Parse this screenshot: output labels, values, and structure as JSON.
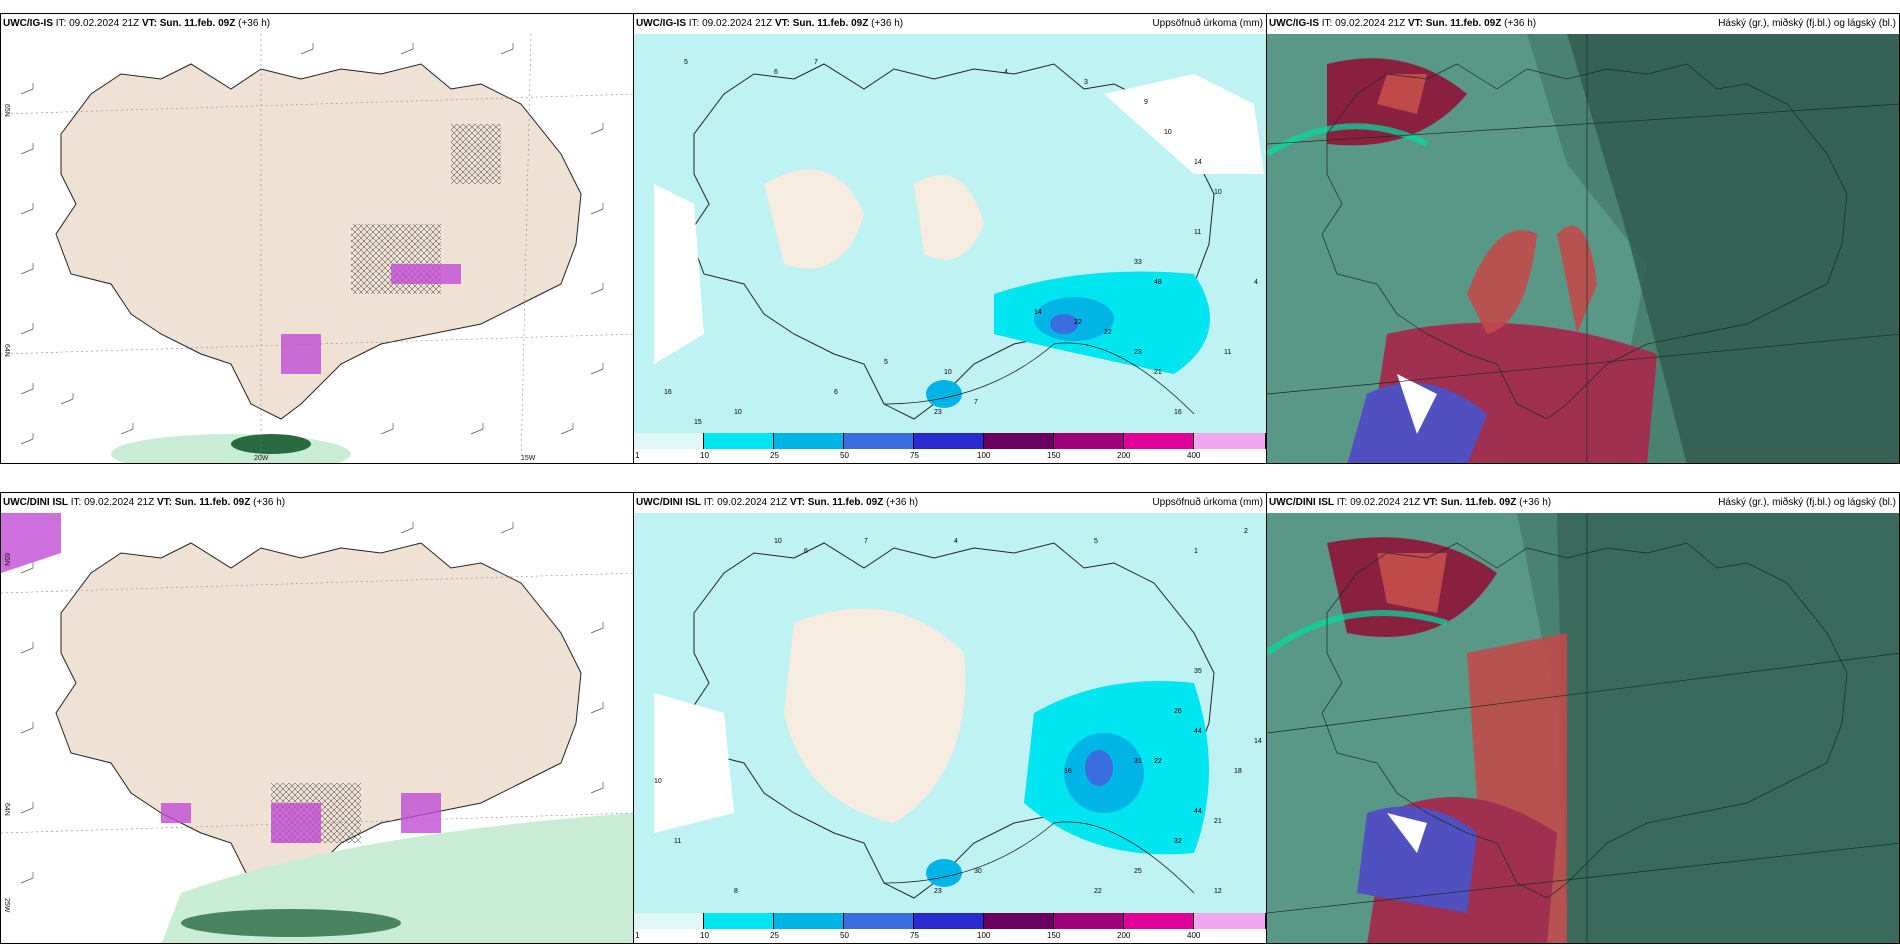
{
  "rows": [
    {
      "model": "UWC/IG-IS",
      "it_label": "IT:",
      "it": "09.02.2024 21Z",
      "vt_label": "VT:",
      "vt": "Sun. 11.feb. 09Z",
      "lead": "(+36 h)",
      "lon_labels": [
        "20W",
        "15W"
      ],
      "lat_labels": [
        "65N",
        "64N"
      ]
    },
    {
      "model": "UWC/DINI ISL",
      "it_label": "IT:",
      "it": "09.02.2024 21Z",
      "vt_label": "VT:",
      "vt": "Sun. 11.feb. 09Z",
      "lead": "(+36 h)",
      "lon_labels": [
        "25W"
      ],
      "lat_labels": [
        "65N",
        "64N"
      ]
    }
  ],
  "precip_title": "Uppsöfnuð úrkoma (mm)",
  "cloud_title": "Háský (gr.), miðský (fj.bl.) og lágský (bl.)",
  "colorbar": {
    "ticks": [
      "1",
      "10",
      "25",
      "50",
      "75",
      "100",
      "150",
      "200",
      "400"
    ],
    "colors": [
      "#dff7f7",
      "#00e6f0",
      "#00b4e6",
      "#3a6ee0",
      "#2a2ad0",
      "#6a0060",
      "#a0007a",
      "#e0009a",
      "#f0a8f0"
    ]
  },
  "colors": {
    "land": "#efe2d4",
    "sea": "#ffffff",
    "cloud_base": "#4a8272",
    "snow_purple": "#c04cd4",
    "rain_green": "#c8ecd4"
  }
}
